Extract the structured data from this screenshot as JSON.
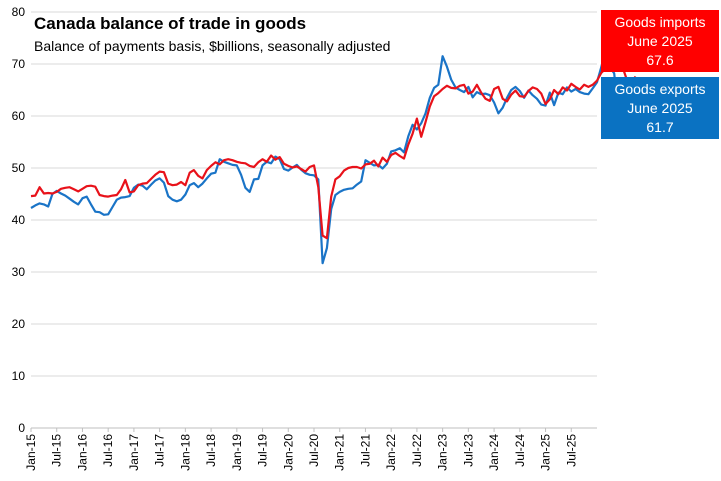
{
  "chart_data": {
    "type": "line",
    "title": "Canada balance of trade in goods",
    "subtitle": "Balance of payments basis, $billions, seasonally adjusted",
    "ylim": [
      0,
      80
    ],
    "yticks": [
      0,
      10,
      20,
      30,
      40,
      50,
      60,
      70,
      80
    ],
    "xticks": [
      "Jan-15",
      "Jul-15",
      "Jan-16",
      "Jul-16",
      "Jan-17",
      "Jul-17",
      "Jan-18",
      "Jul-18",
      "Jan-19",
      "Jul-19",
      "Jan-20",
      "Jul-20",
      "Jan-21",
      "Jul-21",
      "Jan-22",
      "Jul-22",
      "Jan-23",
      "Jul-23",
      "Jan-24",
      "Jul-24",
      "Jan-25",
      "Jul-25"
    ],
    "grid": "horizontal",
    "series": [
      {
        "name": "Goods imports",
        "color": "#e8121a",
        "values": [
          44.6,
          44.7,
          46.3,
          45.1,
          45.2,
          45.1,
          45.4,
          46.0,
          46.2,
          46.3,
          45.9,
          45.5,
          46.0,
          46.5,
          46.6,
          46.4,
          44.8,
          44.6,
          44.5,
          44.7,
          44.8,
          45.9,
          47.7,
          45.3,
          45.5,
          46.7,
          47.0,
          47.1,
          47.9,
          48.7,
          49.3,
          49.2,
          47.0,
          46.7,
          46.8,
          47.3,
          46.7,
          49.1,
          49.6,
          48.5,
          48.0,
          49.6,
          50.4,
          51.1,
          50.7,
          51.5,
          51.7,
          51.5,
          51.2,
          51.0,
          50.9,
          50.4,
          50.2,
          51.1,
          51.7,
          51.2,
          52.4,
          51.6,
          52.1,
          50.8,
          50.4,
          50.1,
          50.3,
          49.8,
          49.3,
          50.2,
          50.5,
          46.3,
          37.0,
          36.5,
          44.5,
          47.8,
          48.4,
          49.5,
          50.0,
          50.2,
          50.2,
          49.9,
          50.7,
          50.8,
          51.4,
          50.3,
          52.0,
          51.2,
          52.5,
          52.9,
          52.3,
          51.8,
          54.5,
          56.6,
          59.5,
          56.0,
          58.8,
          61.8,
          63.8,
          64.4,
          65.2,
          65.8,
          65.4,
          65.3,
          65.8,
          66.0,
          64.3,
          64.7,
          66.0,
          64.5,
          63.3,
          62.9,
          65.2,
          65.6,
          63.3,
          62.8,
          64.1,
          64.9,
          63.8,
          63.7,
          64.8,
          65.5,
          65.2,
          64.3,
          62.3,
          63.2,
          65.0,
          64.2,
          65.5,
          64.9,
          66.2,
          65.6,
          65.1,
          66.0,
          65.6,
          66.0,
          66.8,
          68.3,
          69.1,
          70.2,
          70.7,
          70.3,
          69.3,
          66.9,
          66.5,
          67.6
        ]
      },
      {
        "name": "Goods exports",
        "color": "#1a74c7",
        "values": [
          42.3,
          42.8,
          43.2,
          43.0,
          42.6,
          45.0,
          45.6,
          45.1,
          44.7,
          44.1,
          43.5,
          43.0,
          44.2,
          44.5,
          43.0,
          41.6,
          41.5,
          41.0,
          41.1,
          42.5,
          43.9,
          44.3,
          44.4,
          44.6,
          46.2,
          46.8,
          46.6,
          45.9,
          46.8,
          47.6,
          48.0,
          47.2,
          44.6,
          43.9,
          43.6,
          43.9,
          44.9,
          46.7,
          47.1,
          46.3,
          47.0,
          48.0,
          48.9,
          49.1,
          51.7,
          51.2,
          50.9,
          50.6,
          50.5,
          48.7,
          46.2,
          45.4,
          47.8,
          47.9,
          50.5,
          51.2,
          50.9,
          52.2,
          51.7,
          49.8,
          49.5,
          50.1,
          50.6,
          49.7,
          49.0,
          48.7,
          48.6,
          47.8,
          31.7,
          34.6,
          42.1,
          44.8,
          45.4,
          45.8,
          46.0,
          46.1,
          46.8,
          47.4,
          51.5,
          51.0,
          50.5,
          50.6,
          49.9,
          50.8,
          53.2,
          53.4,
          53.8,
          53.0,
          56.1,
          58.3,
          57.4,
          58.6,
          60.5,
          63.5,
          65.4,
          66.0,
          71.5,
          69.5,
          67.0,
          65.5,
          65.0,
          64.6,
          65.6,
          63.6,
          64.6,
          64.2,
          64.3,
          64.0,
          62.6,
          60.5,
          61.6,
          63.5,
          65.0,
          65.6,
          64.8,
          63.5,
          64.9,
          64.0,
          63.3,
          62.2,
          62.0,
          64.5,
          62.1,
          64.5,
          64.2,
          65.5,
          64.7,
          65.2,
          64.6,
          64.3,
          64.2,
          65.3,
          66.5,
          69.4,
          73.0,
          69.4,
          68.2,
          60.3,
          61.3,
          61.7
        ]
      }
    ]
  },
  "callouts": {
    "imports": {
      "line1": "Goods imports",
      "line2": "June 2025",
      "line3": "67.6",
      "color": "#ff0000"
    },
    "exports": {
      "line1": "Goods exports",
      "line2": "June 2025",
      "line3": "61.7",
      "color": "#0a72c2"
    }
  }
}
